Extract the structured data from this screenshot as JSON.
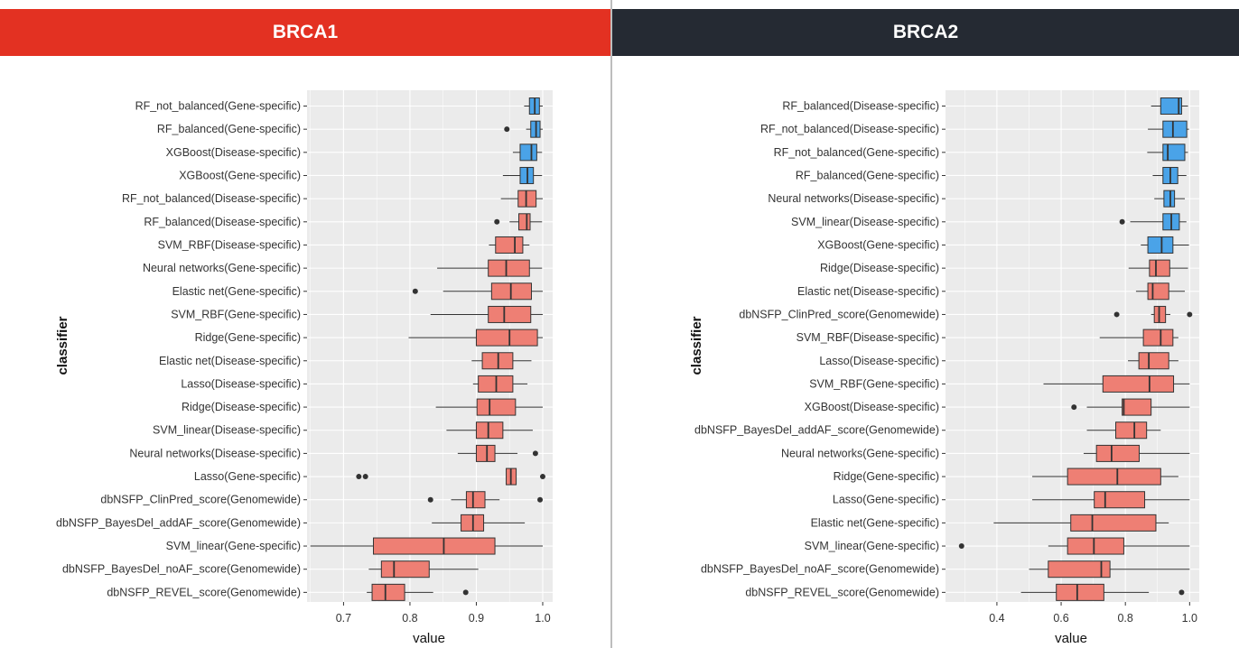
{
  "colors": {
    "brca1_strip": "#e33122",
    "brca2_strip": "#252a33",
    "panel_bg": "#ebebeb",
    "grid": "#ffffff",
    "box_red": "#ee7f74",
    "box_blue": "#4aa3e8",
    "outline": "#333333"
  },
  "chart_data": [
    {
      "type": "box",
      "title": "BRCA1",
      "xlabel": "value",
      "ylabel": "classifier",
      "xlim": [
        0.645,
        1.015
      ],
      "xticks": [
        0.7,
        0.8,
        0.9,
        1.0
      ],
      "xtick_labels": [
        "0.7",
        "0.8",
        "0.9",
        "1.0"
      ],
      "grid": true,
      "categories": [
        {
          "label": "RF_not_balanced(Gene-specific)",
          "whisker_low": 0.972,
          "q1": 0.98,
          "median": 0.988,
          "q3": 0.995,
          "whisker_high": 1.0,
          "outliers": [],
          "color": "blue"
        },
        {
          "label": "RF_balanced(Gene-specific)",
          "whisker_low": 0.975,
          "q1": 0.982,
          "median": 0.99,
          "q3": 0.996,
          "whisker_high": 1.0,
          "outliers": [
            0.946
          ],
          "color": "blue"
        },
        {
          "label": "XGBoost(Disease-specific)",
          "whisker_low": 0.955,
          "q1": 0.966,
          "median": 0.983,
          "q3": 0.991,
          "whisker_high": 0.999,
          "outliers": [],
          "color": "blue"
        },
        {
          "label": "XGBoost(Gene-specific)",
          "whisker_low": 0.94,
          "q1": 0.966,
          "median": 0.977,
          "q3": 0.986,
          "whisker_high": 0.999,
          "outliers": [],
          "color": "blue"
        },
        {
          "label": "RF_not_balanced(Disease-specific)",
          "whisker_low": 0.937,
          "q1": 0.963,
          "median": 0.975,
          "q3": 0.99,
          "whisker_high": 1.0,
          "outliers": [],
          "color": "red"
        },
        {
          "label": "RF_balanced(Disease-specific)",
          "whisker_low": 0.95,
          "q1": 0.964,
          "median": 0.976,
          "q3": 0.981,
          "whisker_high": 0.999,
          "outliers": [
            0.931
          ],
          "color": "red"
        },
        {
          "label": "SVM_RBF(Disease-specific)",
          "whisker_low": 0.919,
          "q1": 0.929,
          "median": 0.958,
          "q3": 0.97,
          "whisker_high": 0.98,
          "outliers": [],
          "color": "red"
        },
        {
          "label": "Neural networks(Gene-specific)",
          "whisker_low": 0.841,
          "q1": 0.918,
          "median": 0.945,
          "q3": 0.98,
          "whisker_high": 0.999,
          "outliers": [],
          "color": "red"
        },
        {
          "label": "Elastic net(Gene-specific)",
          "whisker_low": 0.85,
          "q1": 0.923,
          "median": 0.952,
          "q3": 0.983,
          "whisker_high": 1.0,
          "outliers": [
            0.808
          ],
          "color": "red"
        },
        {
          "label": "SVM_RBF(Gene-specific)",
          "whisker_low": 0.831,
          "q1": 0.918,
          "median": 0.942,
          "q3": 0.982,
          "whisker_high": 1.0,
          "outliers": [],
          "color": "red"
        },
        {
          "label": "Ridge(Gene-specific)",
          "whisker_low": 0.798,
          "q1": 0.9,
          "median": 0.95,
          "q3": 0.992,
          "whisker_high": 1.0,
          "outliers": [],
          "color": "red"
        },
        {
          "label": "Elastic net(Disease-specific)",
          "whisker_low": 0.893,
          "q1": 0.909,
          "median": 0.933,
          "q3": 0.955,
          "whisker_high": 0.983,
          "outliers": [],
          "color": "red"
        },
        {
          "label": "Lasso(Disease-specific)",
          "whisker_low": 0.895,
          "q1": 0.903,
          "median": 0.93,
          "q3": 0.955,
          "whisker_high": 0.977,
          "outliers": [],
          "color": "red"
        },
        {
          "label": "Ridge(Disease-specific)",
          "whisker_low": 0.839,
          "q1": 0.901,
          "median": 0.92,
          "q3": 0.959,
          "whisker_high": 1.0,
          "outliers": [],
          "color": "red"
        },
        {
          "label": "SVM_linear(Disease-specific)",
          "whisker_low": 0.855,
          "q1": 0.9,
          "median": 0.918,
          "q3": 0.94,
          "whisker_high": 0.985,
          "outliers": [],
          "color": "red"
        },
        {
          "label": "Neural networks(Disease-specific)",
          "whisker_low": 0.872,
          "q1": 0.9,
          "median": 0.916,
          "q3": 0.928,
          "whisker_high": 0.962,
          "outliers": [
            0.989
          ],
          "color": "red"
        },
        {
          "label": "Lasso(Gene-specific)",
          "whisker_low": 0.945,
          "q1": 0.945,
          "median": 0.952,
          "q3": 0.96,
          "whisker_high": 0.96,
          "outliers": [
            0.723,
            0.733,
            1.0
          ],
          "color": "red"
        },
        {
          "label": "dbNSFP_ClinPred_score(Genomewide)",
          "whisker_low": 0.862,
          "q1": 0.885,
          "median": 0.895,
          "q3": 0.913,
          "whisker_high": 0.935,
          "outliers": [
            0.831,
            0.996
          ],
          "color": "red"
        },
        {
          "label": "dbNSFP_BayesDel_addAF_score(Genomewide)",
          "whisker_low": 0.833,
          "q1": 0.877,
          "median": 0.895,
          "q3": 0.911,
          "whisker_high": 0.973,
          "outliers": [],
          "color": "red"
        },
        {
          "label": "SVM_linear(Gene-specific)",
          "whisker_low": 0.65,
          "q1": 0.745,
          "median": 0.851,
          "q3": 0.928,
          "whisker_high": 1.0,
          "outliers": [],
          "color": "red"
        },
        {
          "label": "dbNSFP_BayesDel_noAF_score(Genomewide)",
          "whisker_low": 0.738,
          "q1": 0.757,
          "median": 0.776,
          "q3": 0.829,
          "whisker_high": 0.903,
          "outliers": [],
          "color": "red"
        },
        {
          "label": "dbNSFP_REVEL_score(Genomewide)",
          "whisker_low": 0.735,
          "q1": 0.743,
          "median": 0.763,
          "q3": 0.792,
          "whisker_high": 0.835,
          "outliers": [
            0.884
          ],
          "color": "red"
        }
      ]
    },
    {
      "type": "box",
      "title": "BRCA2",
      "xlabel": "value",
      "ylabel": "classifier",
      "xlim": [
        0.24,
        1.03
      ],
      "xticks": [
        0.4,
        0.6,
        0.8,
        1.0
      ],
      "xtick_labels": [
        "0.4",
        "0.6",
        "0.8",
        "1.0"
      ],
      "grid": true,
      "categories": [
        {
          "label": "RF_balanced(Disease-specific)",
          "whisker_low": 0.88,
          "q1": 0.91,
          "median": 0.966,
          "q3": 0.975,
          "whisker_high": 0.995,
          "outliers": [],
          "color": "blue"
        },
        {
          "label": "RF_not_balanced(Disease-specific)",
          "whisker_low": 0.87,
          "q1": 0.917,
          "median": 0.948,
          "q3": 0.991,
          "whisker_high": 0.998,
          "outliers": [],
          "color": "blue"
        },
        {
          "label": "RF_not_balanced(Gene-specific)",
          "whisker_low": 0.868,
          "q1": 0.917,
          "median": 0.932,
          "q3": 0.985,
          "whisker_high": 0.995,
          "outliers": [],
          "color": "blue"
        },
        {
          "label": "RF_balanced(Gene-specific)",
          "whisker_low": 0.885,
          "q1": 0.917,
          "median": 0.94,
          "q3": 0.963,
          "whisker_high": 0.99,
          "outliers": [],
          "color": "blue"
        },
        {
          "label": "Neural networks(Disease-specific)",
          "whisker_low": 0.89,
          "q1": 0.92,
          "median": 0.94,
          "q3": 0.953,
          "whisker_high": 0.985,
          "outliers": [],
          "color": "blue"
        },
        {
          "label": "SVM_linear(Disease-specific)",
          "whisker_low": 0.815,
          "q1": 0.917,
          "median": 0.943,
          "q3": 0.968,
          "whisker_high": 0.99,
          "outliers": [
            0.79
          ],
          "color": "blue"
        },
        {
          "label": "XGBoost(Gene-specific)",
          "whisker_low": 0.848,
          "q1": 0.87,
          "median": 0.913,
          "q3": 0.948,
          "whisker_high": 0.998,
          "outliers": [],
          "color": "blue"
        },
        {
          "label": "Ridge(Disease-specific)",
          "whisker_low": 0.81,
          "q1": 0.875,
          "median": 0.895,
          "q3": 0.938,
          "whisker_high": 0.995,
          "outliers": [],
          "color": "red"
        },
        {
          "label": "Elastic net(Disease-specific)",
          "whisker_low": 0.833,
          "q1": 0.87,
          "median": 0.885,
          "q3": 0.935,
          "whisker_high": 0.985,
          "outliers": [],
          "color": "red"
        },
        {
          "label": "dbNSFP_ClinPred_score(Genomewide)",
          "whisker_low": 0.88,
          "q1": 0.89,
          "median": 0.905,
          "q3": 0.925,
          "whisker_high": 0.94,
          "outliers": [
            0.773,
            1.0
          ],
          "color": "red"
        },
        {
          "label": "SVM_RBF(Disease-specific)",
          "whisker_low": 0.72,
          "q1": 0.856,
          "median": 0.91,
          "q3": 0.948,
          "whisker_high": 0.965,
          "outliers": [],
          "color": "red"
        },
        {
          "label": "Lasso(Disease-specific)",
          "whisker_low": 0.808,
          "q1": 0.842,
          "median": 0.873,
          "q3": 0.935,
          "whisker_high": 0.965,
          "outliers": [],
          "color": "red"
        },
        {
          "label": "SVM_RBF(Gene-specific)",
          "whisker_low": 0.545,
          "q1": 0.73,
          "median": 0.875,
          "q3": 0.95,
          "whisker_high": 1.0,
          "outliers": [],
          "color": "red"
        },
        {
          "label": "XGBoost(Disease-specific)",
          "whisker_low": 0.68,
          "q1": 0.79,
          "median": 0.795,
          "q3": 0.88,
          "whisker_high": 1.0,
          "outliers": [
            0.64
          ],
          "color": "red"
        },
        {
          "label": "dbNSFP_BayesDel_addAF_score(Genomewide)",
          "whisker_low": 0.68,
          "q1": 0.77,
          "median": 0.828,
          "q3": 0.866,
          "whisker_high": 0.91,
          "outliers": [],
          "color": "red"
        },
        {
          "label": "Neural networks(Gene-specific)",
          "whisker_low": 0.67,
          "q1": 0.71,
          "median": 0.757,
          "q3": 0.843,
          "whisker_high": 1.0,
          "outliers": [],
          "color": "red"
        },
        {
          "label": "Ridge(Gene-specific)",
          "whisker_low": 0.51,
          "q1": 0.62,
          "median": 0.775,
          "q3": 0.91,
          "whisker_high": 0.965,
          "outliers": [],
          "color": "red"
        },
        {
          "label": "Lasso(Gene-specific)",
          "whisker_low": 0.51,
          "q1": 0.703,
          "median": 0.737,
          "q3": 0.86,
          "whisker_high": 1.0,
          "outliers": [],
          "color": "red"
        },
        {
          "label": "Elastic net(Gene-specific)",
          "whisker_low": 0.39,
          "q1": 0.63,
          "median": 0.697,
          "q3": 0.895,
          "whisker_high": 0.935,
          "outliers": [],
          "color": "red"
        },
        {
          "label": "SVM_linear(Gene-specific)",
          "whisker_low": 0.56,
          "q1": 0.62,
          "median": 0.702,
          "q3": 0.795,
          "whisker_high": 1.0,
          "outliers": [
            0.29
          ],
          "color": "red"
        },
        {
          "label": "dbNSFP_BayesDel_noAF_score(Genomewide)",
          "whisker_low": 0.5,
          "q1": 0.56,
          "median": 0.725,
          "q3": 0.752,
          "whisker_high": 1.0,
          "outliers": [],
          "color": "red"
        },
        {
          "label": "dbNSFP_REVEL_score(Genomewide)",
          "whisker_low": 0.475,
          "q1": 0.585,
          "median": 0.65,
          "q3": 0.733,
          "whisker_high": 0.873,
          "outliers": [
            0.975
          ],
          "color": "red"
        }
      ]
    }
  ]
}
